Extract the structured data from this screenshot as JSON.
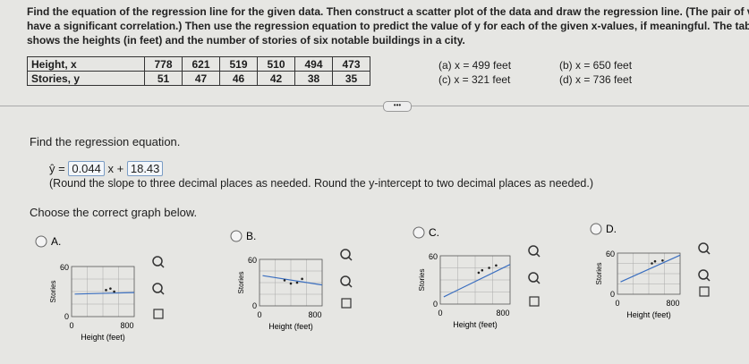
{
  "question": [
    "Find the equation of the regression line for the given data. Then construct a scatter plot of the data and draw the regression line. (The pair of variables",
    "have a significant correlation.) Then use the regression equation to predict the value of y for each of the given x-values, if meaningful. The table below",
    "shows the heights (in feet) and the number of stories of six notable buildings in a city."
  ],
  "table": {
    "rows": [
      [
        "Height, x",
        778,
        621,
        519,
        510,
        494,
        473
      ],
      [
        "Stories, y",
        51,
        47,
        46,
        42,
        38,
        35
      ]
    ]
  },
  "parts": [
    "(a) x = 499 feet",
    "(b) x = 650 feet",
    "(c) x = 321 feet",
    "(d) x = 736 feet"
  ],
  "regression": {
    "prompt": "Find the regression equation.",
    "lhs": "ŷ =",
    "slope": "0.044",
    "mid": "x +",
    "intercept": "18.43",
    "note": "(Round the slope to three decimal places as needed. Round the y-intercept to two decimal places as needed.)"
  },
  "graph_prompt": "Choose the correct graph below.",
  "options": [
    {
      "label": "A.",
      "y_label": "Stories",
      "x_label": "Height (feet)",
      "y_ticks": [
        "60",
        "0"
      ],
      "x_ticks": [
        "0",
        "800"
      ]
    },
    {
      "label": "B.",
      "y_label": "Stories",
      "x_label": "Height (feet)",
      "y_ticks": [
        "60",
        "0"
      ],
      "x_ticks": [
        "0",
        "800"
      ]
    },
    {
      "label": "C.",
      "y_label": "Stories",
      "x_label": "Height (feet)",
      "y_ticks": [
        "60",
        "0"
      ],
      "x_ticks": [
        "0",
        "800"
      ]
    },
    {
      "label": "D.",
      "y_label": "Stories",
      "x_label": "Height (feet)",
      "y_ticks": [
        "60",
        "0"
      ],
      "x_ticks": [
        "0",
        "800"
      ]
    }
  ]
}
